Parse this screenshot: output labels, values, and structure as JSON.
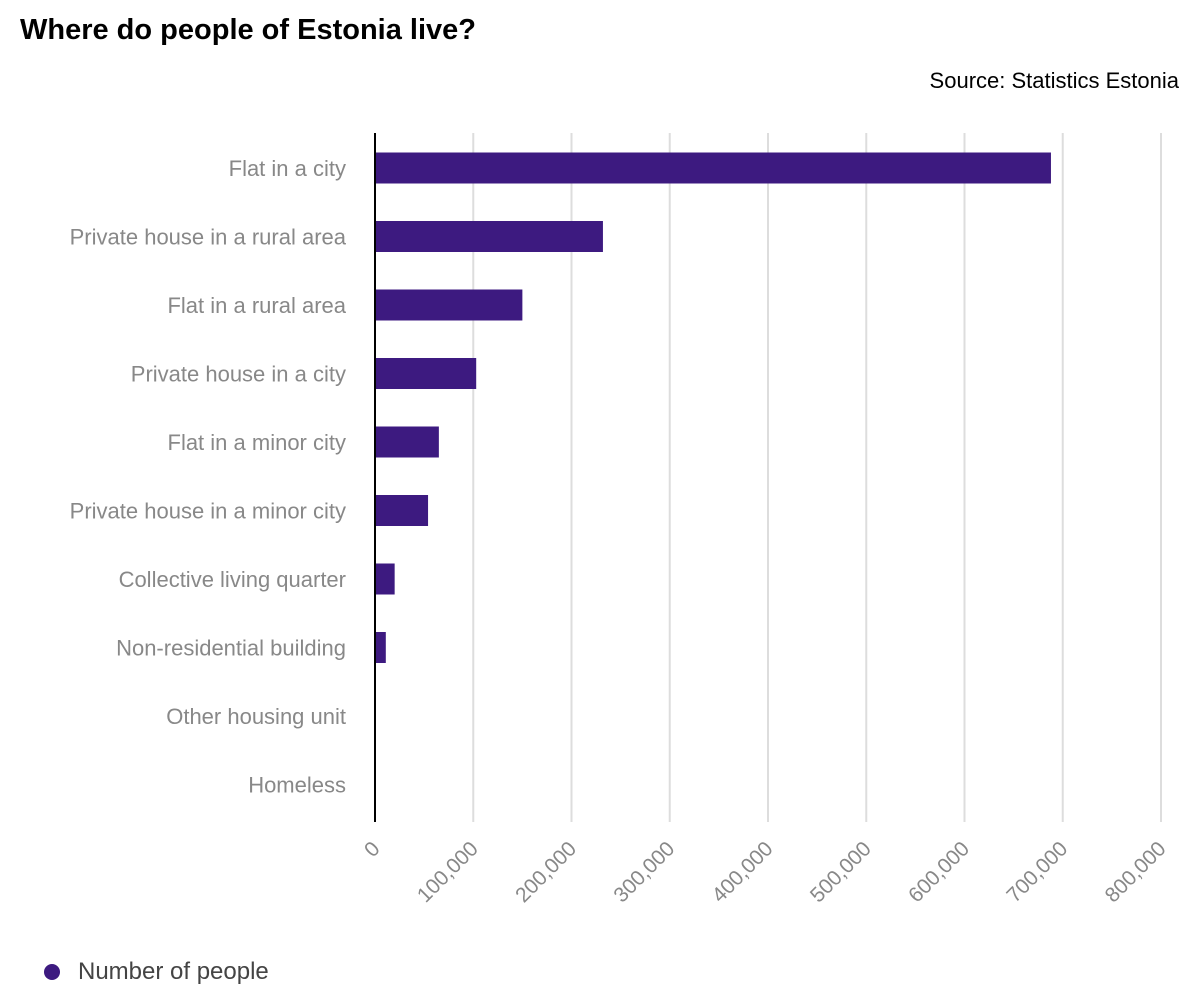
{
  "chart_data": {
    "type": "bar",
    "orientation": "horizontal",
    "title": "Where do people of Estonia live?",
    "subtitle": "Source: Statistics Estonia",
    "categories": [
      "Flat in a city",
      "Private house in a rural area",
      "Flat in a rural area",
      "Private house in a city",
      "Flat in a minor city",
      "Private house in a minor city",
      "Collective living quarter",
      "Non-residential building",
      "Other housing unit",
      "Homeless"
    ],
    "series": [
      {
        "name": "Number of people",
        "values": [
          688000,
          232000,
          150000,
          103000,
          65000,
          54000,
          20000,
          11000,
          600,
          300
        ]
      }
    ],
    "xlim": [
      0,
      800000
    ],
    "x_ticks": [
      0,
      100000,
      200000,
      300000,
      400000,
      500000,
      600000,
      700000,
      800000
    ],
    "x_tick_labels": [
      "0",
      "100,000",
      "200,000",
      "300,000",
      "400,000",
      "500,000",
      "600,000",
      "700,000",
      "800,000"
    ],
    "xlabel": "",
    "ylabel": "",
    "grid": true,
    "legend_position": "bottom-left",
    "colors": {
      "bar": "#3d1a80",
      "grid": "#dddddd",
      "axis": "#000000",
      "category_label": "#888888",
      "tick_label": "#888888"
    }
  },
  "legend": {
    "label": "Number of people"
  }
}
